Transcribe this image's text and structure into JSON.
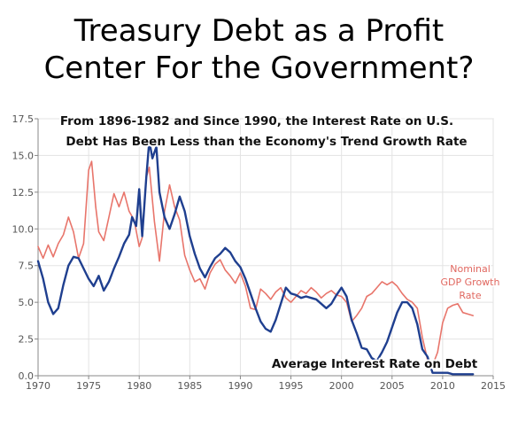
{
  "slide": {
    "title_line1": "Treasury Debt as a Profit",
    "title_line2": "Center For the Government?"
  },
  "chart_data": {
    "type": "line",
    "title": "From 1896-1982 and Since 1990, the Interest Rate on U.S. Debt Has Been Less than the Economy's Trend Growth Rate",
    "title_lines": [
      "From 1896-1982 and Since 1990, the Interest Rate on U.S.",
      "Debt Has Been Less than the Economy's Trend Growth Rate"
    ],
    "xlabel": "",
    "ylabel": "",
    "xlim": [
      1970,
      2015
    ],
    "ylim": [
      0,
      17.5
    ],
    "x_ticks": [
      "1970",
      "1975",
      "1980",
      "1985",
      "1990",
      "1995",
      "2000",
      "2005",
      "2010",
      "2015"
    ],
    "y_ticks": [
      "0.0",
      "2.5",
      "5.0",
      "7.5",
      "10.0",
      "12.5",
      "15.0",
      "17.5"
    ],
    "grid": true,
    "series": [
      {
        "name": "Nominal GDP Growth Rate",
        "label_lines": [
          "Nominal",
          "GDP Growth",
          "Rate"
        ],
        "color": "#e8756b",
        "x": [
          1970,
          1970.5,
          1971,
          1971.5,
          1972,
          1972.5,
          1973,
          1973.5,
          1974,
          1974.5,
          1975,
          1975.3,
          1975.7,
          1976,
          1976.5,
          1977,
          1977.5,
          1978,
          1978.5,
          1979,
          1979.5,
          1980,
          1980.3,
          1980.7,
          1981,
          1981.5,
          1982,
          1982.5,
          1983,
          1983.5,
          1984,
          1984.5,
          1985,
          1985.5,
          1986,
          1986.5,
          1987,
          1987.5,
          1988,
          1988.5,
          1989,
          1989.5,
          1990,
          1990.5,
          1991,
          1991.5,
          1992,
          1992.5,
          1993,
          1993.5,
          1994,
          1994.5,
          1995,
          1995.5,
          1996,
          1996.5,
          1997,
          1997.5,
          1998,
          1998.5,
          1999,
          1999.5,
          2000,
          2000.5,
          2001,
          2001.5,
          2002,
          2002.5,
          2003,
          2003.5,
          2004,
          2004.5,
          2005,
          2005.5,
          2006,
          2006.5,
          2007,
          2007.5,
          2008,
          2008.5,
          2009,
          2009.5,
          2010,
          2010.5,
          2011,
          2011.5,
          2012,
          2012.5,
          2013
        ],
        "values": [
          8.8,
          8.0,
          8.9,
          8.1,
          9.0,
          9.6,
          10.8,
          9.8,
          8.0,
          9.0,
          14.0,
          14.6,
          11.5,
          9.8,
          9.2,
          10.8,
          12.4,
          11.5,
          12.5,
          11.2,
          10.6,
          8.8,
          9.4,
          13.5,
          14.2,
          10.5,
          7.8,
          11.2,
          13.0,
          11.5,
          10.6,
          8.2,
          7.2,
          6.4,
          6.6,
          5.9,
          7.0,
          7.6,
          7.9,
          7.2,
          6.8,
          6.3,
          7.0,
          6.1,
          4.6,
          4.5,
          5.9,
          5.6,
          5.2,
          5.7,
          6.0,
          5.3,
          5.0,
          5.4,
          5.8,
          5.6,
          6.0,
          5.7,
          5.3,
          5.6,
          5.8,
          5.5,
          5.4,
          5.0,
          3.7,
          4.1,
          4.6,
          5.4,
          5.6,
          6.0,
          6.4,
          6.2,
          6.4,
          6.1,
          5.6,
          5.2,
          5.0,
          4.6,
          2.6,
          1.1,
          0.7,
          1.6,
          3.6,
          4.6,
          4.8,
          4.9,
          4.3,
          4.2,
          4.1
        ]
      },
      {
        "name": "Average Interest Rate on Debt",
        "color": "#1f3f8f",
        "x": [
          1970,
          1970.5,
          1971,
          1971.5,
          1972,
          1972.5,
          1973,
          1973.5,
          1974,
          1974.5,
          1975,
          1975.5,
          1976,
          1976.5,
          1977,
          1977.5,
          1978,
          1978.5,
          1979,
          1979.3,
          1979.7,
          1980,
          1980.3,
          1980.7,
          1981,
          1981.3,
          1981.7,
          1982,
          1982.5,
          1983,
          1983.5,
          1984,
          1984.5,
          1985,
          1985.5,
          1986,
          1986.5,
          1987,
          1987.5,
          1988,
          1988.5,
          1989,
          1989.5,
          1990,
          1990.5,
          1991,
          1991.5,
          1992,
          1992.5,
          1993,
          1993.5,
          1994,
          1994.5,
          1995,
          1995.5,
          1996,
          1996.5,
          1997,
          1997.5,
          1998,
          1998.5,
          1999,
          1999.5,
          2000,
          2000.5,
          2001,
          2001.5,
          2002,
          2002.5,
          2003,
          2003.5,
          2004,
          2004.5,
          2005,
          2005.5,
          2006,
          2006.5,
          2007,
          2007.5,
          2008,
          2008.5,
          2009,
          2009.5,
          2010,
          2010.5,
          2011,
          2011.5,
          2012,
          2012.5,
          2013
        ],
        "values": [
          7.8,
          6.6,
          5.0,
          4.2,
          4.6,
          6.2,
          7.5,
          8.1,
          8.0,
          7.3,
          6.6,
          6.1,
          6.8,
          5.8,
          6.4,
          7.3,
          8.1,
          9.0,
          9.6,
          10.8,
          10.2,
          12.7,
          9.5,
          13.5,
          16.0,
          14.8,
          15.6,
          12.5,
          10.8,
          10.0,
          11.0,
          12.2,
          11.2,
          9.5,
          8.3,
          7.3,
          6.7,
          7.4,
          8.0,
          8.3,
          8.7,
          8.4,
          7.8,
          7.4,
          6.6,
          5.6,
          4.6,
          3.7,
          3.2,
          3.0,
          3.8,
          4.9,
          6.0,
          5.6,
          5.5,
          5.3,
          5.4,
          5.3,
          5.2,
          4.9,
          4.6,
          4.9,
          5.5,
          6.0,
          5.4,
          3.8,
          2.9,
          1.9,
          1.8,
          1.2,
          1.0,
          1.6,
          2.3,
          3.3,
          4.3,
          5.0,
          5.0,
          4.6,
          3.5,
          1.8,
          1.3,
          0.2,
          0.2,
          0.2,
          0.2,
          0.1,
          0.1,
          0.1,
          0.1,
          0.1
        ]
      }
    ],
    "annotation": "Average Interest Rate on Debt"
  }
}
